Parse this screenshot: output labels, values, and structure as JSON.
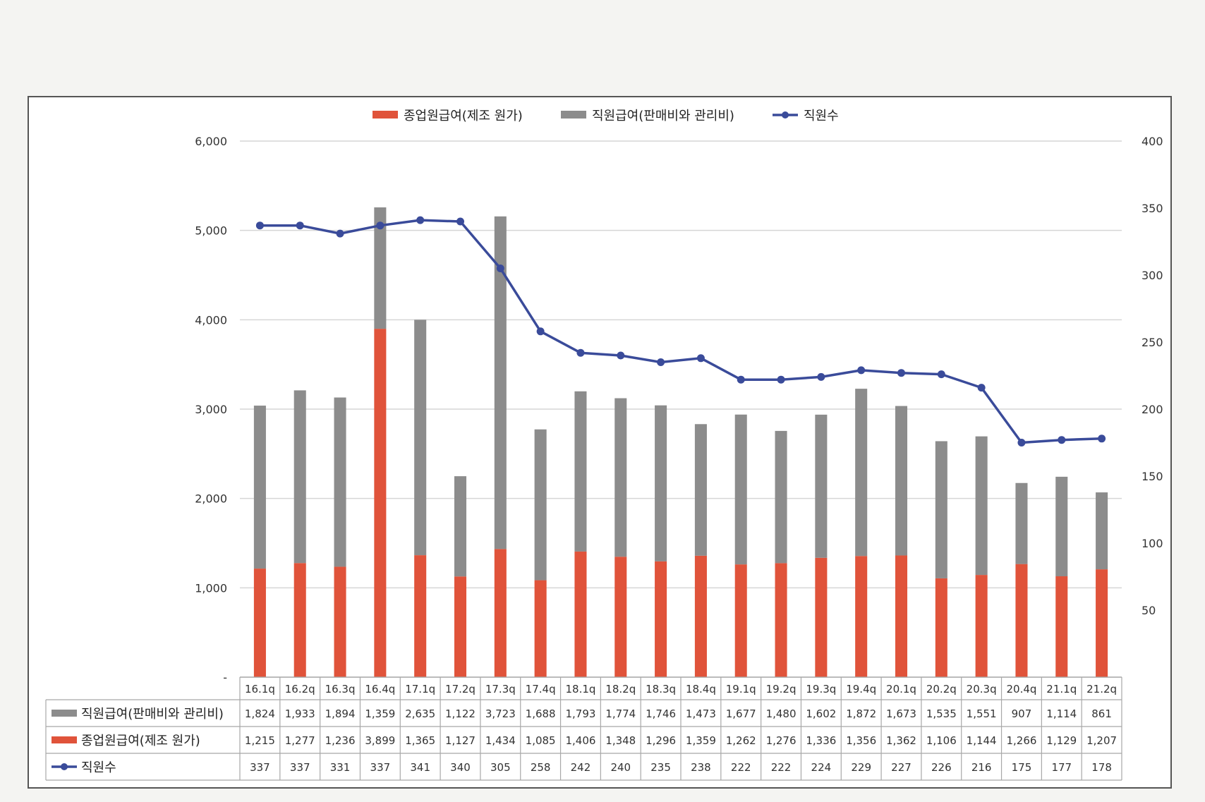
{
  "chart_data": {
    "type": "bar",
    "stacked": true,
    "categories": [
      "16.1q",
      "16.2q",
      "16.3q",
      "16.4q",
      "17.1q",
      "17.2q",
      "17.3q",
      "17.4q",
      "18.1q",
      "18.2q",
      "18.3q",
      "18.4q",
      "19.1q",
      "19.2q",
      "19.3q",
      "19.4q",
      "20.1q",
      "20.2q",
      "20.3q",
      "20.4q",
      "21.1q",
      "21.2q"
    ],
    "series": [
      {
        "name": "직원급여(판매비와 관리비)",
        "type": "bar",
        "axis": "left",
        "color": "#8c8c8c",
        "values": [
          1824,
          1933,
          1894,
          1359,
          2635,
          1122,
          3723,
          1688,
          1793,
          1774,
          1746,
          1473,
          1677,
          1480,
          1602,
          1872,
          1673,
          1535,
          1551,
          907,
          1114,
          861
        ]
      },
      {
        "name": "종업원급여(제조 원가)",
        "type": "bar",
        "axis": "left",
        "color": "#e0533a",
        "values": [
          1215,
          1277,
          1236,
          3899,
          1365,
          1127,
          1434,
          1085,
          1406,
          1348,
          1296,
          1359,
          1262,
          1276,
          1336,
          1356,
          1362,
          1106,
          1144,
          1266,
          1129,
          1207
        ]
      },
      {
        "name": "직원수",
        "type": "line",
        "axis": "right",
        "color": "#3a4b9a",
        "values": [
          337,
          337,
          331,
          337,
          341,
          340,
          305,
          258,
          242,
          240,
          235,
          238,
          222,
          222,
          224,
          229,
          227,
          226,
          216,
          175,
          177,
          178
        ]
      }
    ],
    "legend": [
      "종업원급여(제조 원가)",
      "직원급여(판매비와 관리비)",
      "직원수"
    ],
    "legend_position": "top",
    "left_axis": {
      "ylim": [
        0,
        6000
      ],
      "ticks": [
        "-",
        "1,000",
        "2,000",
        "3,000",
        "4,000",
        "5,000",
        "6,000"
      ]
    },
    "right_axis": {
      "ylim": [
        0,
        400
      ],
      "ticks": [
        "50",
        "100",
        "150",
        "200",
        "250",
        "300",
        "350",
        "400"
      ]
    },
    "grid": true,
    "data_table": true
  }
}
